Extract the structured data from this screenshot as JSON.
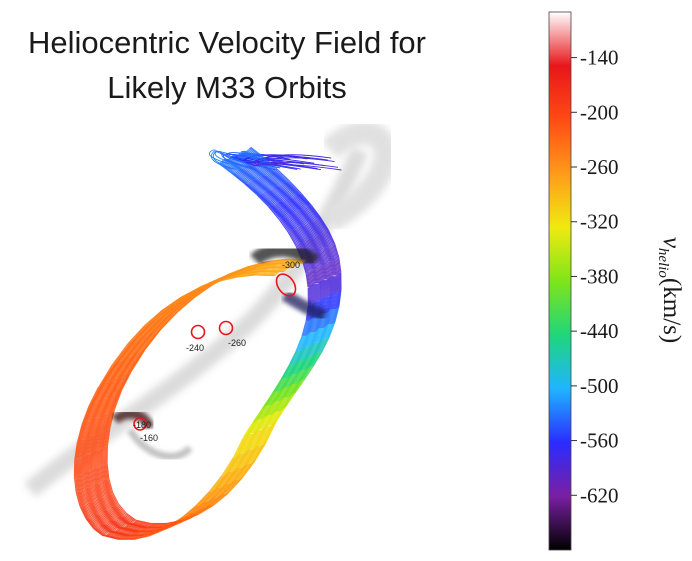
{
  "chart_data": {
    "type": "scatter",
    "title_lines": [
      "Heliocentric Velocity Field for",
      "Likely M33 Orbits"
    ],
    "colorbar": {
      "label_var": "v",
      "label_sub": "helio",
      "label_unit": "(km/s)",
      "ticks": [
        -140,
        -200,
        -260,
        -320,
        -380,
        -440,
        -500,
        -560,
        -620
      ],
      "range": [
        -680,
        -90
      ],
      "colormap": [
        "#000000",
        "#7a1fa2",
        "#2a2cff",
        "#1fb5ff",
        "#1fd67a",
        "#7fe51a",
        "#f0ea10",
        "#ff9a1a",
        "#ff4b14",
        "#e8161a",
        "#ffffff"
      ]
    },
    "markers": [
      {
        "label": "-300",
        "velocity": -300
      },
      {
        "label": "-240",
        "velocity": -240
      },
      {
        "label": "-260",
        "velocity": -260
      },
      {
        "label": "-180",
        "velocity": -180
      },
      {
        "label": "-160",
        "velocity": -160
      }
    ]
  }
}
